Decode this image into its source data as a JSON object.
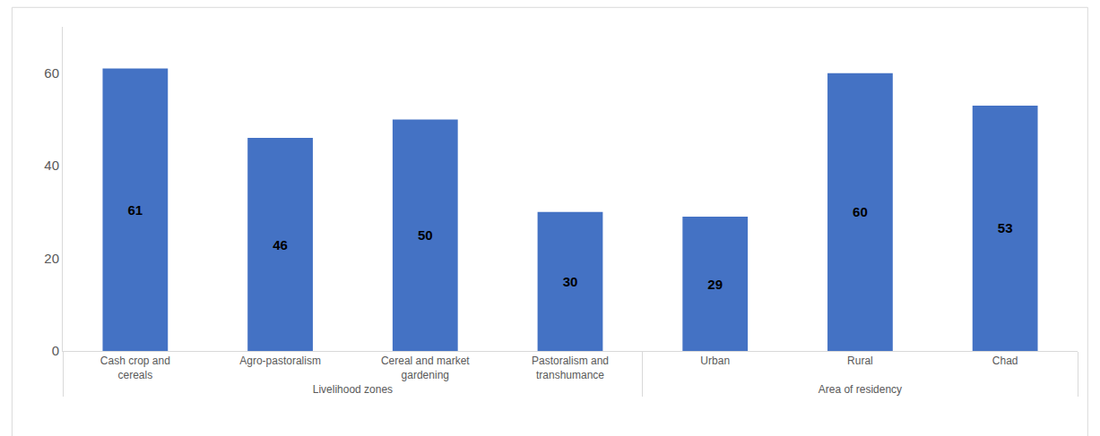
{
  "chart_data": {
    "type": "bar",
    "categories": [
      "Cash crop and cereals",
      "Agro-pastoralism",
      "Cereal and market gardening",
      "Pastoralism and transhumance",
      "Urban",
      "Rural",
      "Chad"
    ],
    "groups": [
      "Livelihood zones",
      "Livelihood zones",
      "Livelihood zones",
      "Livelihood zones",
      "Area of residency",
      "Area of residency",
      "Area of residency"
    ],
    "values": [
      61,
      46,
      50,
      30,
      29,
      60,
      53
    ],
    "color": "#4472c4",
    "ylim": [
      0,
      70
    ],
    "yticks": [
      0,
      20,
      40,
      60
    ],
    "grid": false,
    "data_labels": true
  }
}
